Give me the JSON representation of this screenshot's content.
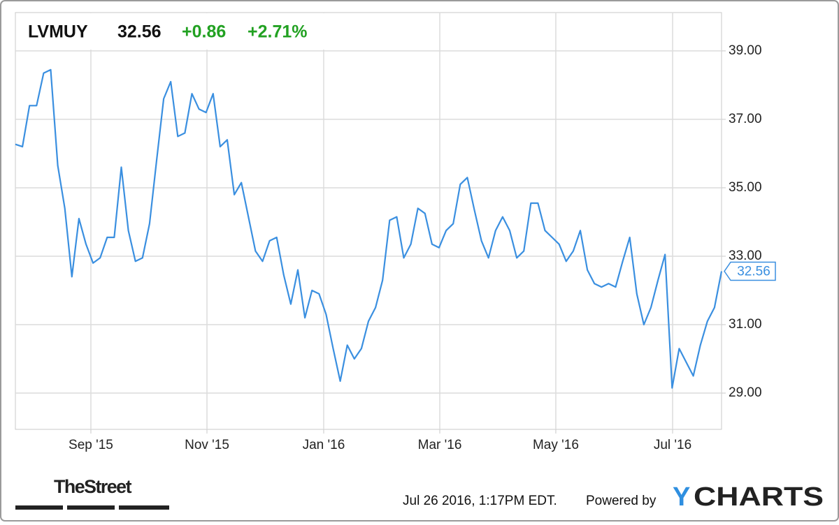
{
  "chart_data": {
    "type": "line",
    "symbol": "LVMUY",
    "price": "32.56",
    "change": "+0.86",
    "change_percent": "+2.71%",
    "color": "#3a8fe0",
    "change_color": "#22a122",
    "grid": true,
    "ylim": [
      27.94,
      40.12
    ],
    "yticks": [
      {
        "value": 29,
        "label": "29.00"
      },
      {
        "value": 31,
        "label": "31.00"
      },
      {
        "value": 33,
        "label": "33.00"
      },
      {
        "value": 35,
        "label": "35.00"
      },
      {
        "value": 37,
        "label": "37.00"
      },
      {
        "value": 39,
        "label": "39.00"
      }
    ],
    "xlim": [
      0,
      100
    ],
    "xticks": [
      {
        "value": 10.69,
        "label": "Sep '15"
      },
      {
        "value": 27.13,
        "label": "Nov '15"
      },
      {
        "value": 43.66,
        "label": "Jan '16"
      },
      {
        "value": 60.1,
        "label": "Mar '16"
      },
      {
        "value": 76.53,
        "label": "May '16"
      },
      {
        "value": 93.07,
        "label": "Jul '16"
      }
    ],
    "values": [
      36.27,
      36.2,
      37.4,
      37.4,
      38.35,
      38.45,
      35.65,
      34.4,
      32.4,
      34.1,
      33.35,
      32.8,
      32.95,
      33.55,
      33.55,
      35.6,
      33.75,
      32.85,
      32.95,
      33.95,
      35.8,
      37.6,
      38.1,
      36.5,
      36.6,
      37.75,
      37.3,
      37.2,
      37.75,
      36.2,
      36.4,
      34.8,
      35.15,
      34.15,
      33.15,
      32.85,
      33.45,
      33.55,
      32.45,
      31.6,
      32.6,
      31.2,
      32.0,
      31.9,
      31.3,
      30.3,
      29.35,
      30.4,
      30.0,
      30.3,
      31.1,
      31.5,
      32.3,
      34.05,
      34.15,
      32.95,
      33.35,
      34.4,
      34.25,
      33.35,
      33.25,
      33.75,
      33.95,
      35.1,
      35.3,
      34.35,
      33.45,
      32.95,
      33.75,
      34.15,
      33.75,
      32.95,
      33.15,
      34.55,
      34.55,
      33.75,
      33.55,
      33.35,
      32.85,
      33.15,
      33.75,
      32.6,
      32.2,
      32.1,
      32.2,
      32.1,
      32.85,
      33.55,
      31.9,
      31.0,
      31.5,
      32.3,
      33.05,
      29.15,
      30.3,
      29.9,
      29.5,
      30.4,
      31.1,
      31.5,
      32.56
    ]
  },
  "footer": {
    "brand_left": "TheStreet",
    "timestamp": "Jul 26 2016, 1:17PM EDT.",
    "powered_by": "Powered by",
    "brand_right_initial": "Y",
    "brand_right_rest": "CHARTS"
  }
}
